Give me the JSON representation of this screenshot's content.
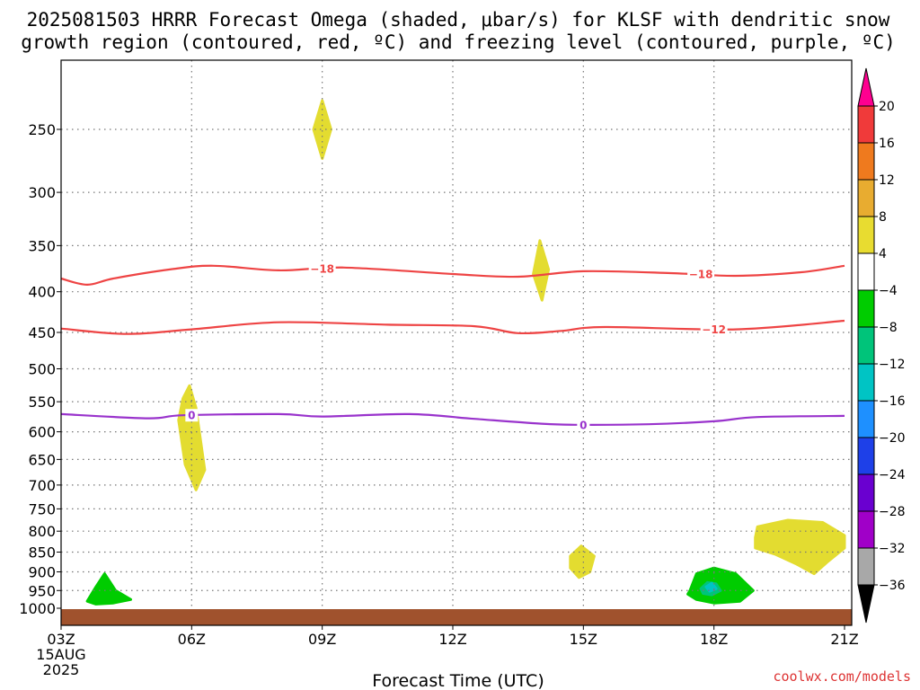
{
  "title": {
    "line1": "2025081503 HRRR Forecast Omega (shaded, μbar/s) for KLSF with dendritic snow",
    "line2": "growth region (contoured, red, ºC) and freezing level (contoured, purple, ºC)"
  },
  "credit": "coolwx.com/models",
  "chart_data": {
    "type": "heatmap",
    "xlabel": "Forecast Time (UTC)",
    "x_range": [
      0,
      18
    ],
    "x_ticks": [
      {
        "hour": 0,
        "label": "03Z",
        "sub1": "15AUG",
        "sub2": "2025"
      },
      {
        "hour": 3,
        "label": "06Z"
      },
      {
        "hour": 6,
        "label": "09Z"
      },
      {
        "hour": 9,
        "label": "12Z"
      },
      {
        "hour": 12,
        "label": "15Z"
      },
      {
        "hour": 15,
        "label": "18Z"
      },
      {
        "hour": 18,
        "label": "21Z"
      }
    ],
    "y_ticks": [
      250,
      300,
      350,
      400,
      450,
      500,
      550,
      600,
      650,
      700,
      750,
      800,
      850,
      900,
      950,
      1000
    ],
    "y_range": [
      1025,
      200
    ],
    "y_scale": "log",
    "grid": true,
    "ground_color": "#a0522d",
    "colorbar": {
      "labels": [
        "20",
        "16",
        "12",
        "8",
        "4",
        "−4",
        "−8",
        "−12",
        "−16",
        "−20",
        "−24",
        "−28",
        "−32",
        "−36"
      ],
      "colors": [
        "#ff0090",
        "#f03a3a",
        "#ef7a1e",
        "#e8ac30",
        "#e8dc30",
        "#ffffff",
        "#00cc00",
        "#00c47a",
        "#00c4c4",
        "#1e90ff",
        "#1e40e8",
        "#6a00d0",
        "#a000c8",
        "#a8a8a8",
        "#000000"
      ]
    },
    "omega_regions": [
      {
        "color": "#e3dc30",
        "points": [
          [
            6.0,
            230
          ],
          [
            6.2,
            250
          ],
          [
            6.0,
            272
          ],
          [
            5.8,
            250
          ]
        ]
      },
      {
        "color": "#e3dc30",
        "points": [
          [
            2.95,
            525
          ],
          [
            3.1,
            560
          ],
          [
            3.25,
            640
          ],
          [
            3.3,
            670
          ],
          [
            3.1,
            710
          ],
          [
            2.85,
            660
          ],
          [
            2.7,
            580
          ],
          [
            2.8,
            545
          ]
        ]
      },
      {
        "color": "#e3dc30",
        "points": [
          [
            11.0,
            345
          ],
          [
            11.2,
            375
          ],
          [
            11.05,
            410
          ],
          [
            10.85,
            380
          ]
        ]
      },
      {
        "color": "#e3dc30",
        "points": [
          [
            11.95,
            835
          ],
          [
            12.25,
            860
          ],
          [
            12.15,
            900
          ],
          [
            11.9,
            915
          ],
          [
            11.7,
            890
          ],
          [
            11.7,
            860
          ]
        ]
      },
      {
        "color": "#e3dc30",
        "points": [
          [
            16.0,
            790
          ],
          [
            16.7,
            775
          ],
          [
            17.5,
            780
          ],
          [
            18.0,
            810
          ],
          [
            18.0,
            840
          ],
          [
            17.6,
            875
          ],
          [
            17.3,
            905
          ],
          [
            16.9,
            880
          ],
          [
            16.4,
            855
          ],
          [
            15.95,
            840
          ],
          [
            15.95,
            815
          ]
        ]
      },
      {
        "color": "#00cc00",
        "points": [
          [
            0.6,
            980
          ],
          [
            0.8,
            940
          ],
          [
            1.0,
            905
          ],
          [
            1.25,
            950
          ],
          [
            1.6,
            975
          ],
          [
            1.2,
            985
          ],
          [
            0.8,
            988
          ]
        ]
      },
      {
        "color": "#00cc00",
        "points": [
          [
            14.45,
            950
          ],
          [
            14.6,
            905
          ],
          [
            15.0,
            890
          ],
          [
            15.5,
            905
          ],
          [
            15.9,
            950
          ],
          [
            15.6,
            980
          ],
          [
            15.0,
            985
          ],
          [
            14.6,
            975
          ],
          [
            14.4,
            960
          ]
        ]
      },
      {
        "color": "#00c47a",
        "points": [
          [
            14.7,
            945
          ],
          [
            14.85,
            928
          ],
          [
            15.05,
            932
          ],
          [
            15.15,
            950
          ],
          [
            14.95,
            962
          ],
          [
            14.75,
            958
          ]
        ]
      },
      {
        "color": "#00c4c4",
        "points": [
          [
            14.82,
            940
          ],
          [
            14.95,
            930
          ],
          [
            15.05,
            945
          ],
          [
            14.9,
            952
          ]
        ]
      }
    ],
    "contours": [
      {
        "label": "−18",
        "color": "#ee4444",
        "points": [
          [
            0,
            385
          ],
          [
            0.6,
            392
          ],
          [
            1.2,
            385
          ],
          [
            2.5,
            375
          ],
          [
            3.5,
            371
          ],
          [
            5,
            376
          ],
          [
            6.5,
            373
          ],
          [
            9,
            380
          ],
          [
            10.5,
            383
          ],
          [
            12,
            377
          ],
          [
            14,
            379
          ],
          [
            15.5,
            382
          ],
          [
            17,
            378
          ],
          [
            18,
            371
          ]
        ],
        "label_at": [
          [
            6.0,
            374
          ],
          [
            14.7,
            380
          ]
        ]
      },
      {
        "label": "−12",
        "color": "#ee4444",
        "points": [
          [
            0,
            445
          ],
          [
            1.5,
            452
          ],
          [
            3,
            446
          ],
          [
            5,
            437
          ],
          [
            7.5,
            440
          ],
          [
            9.5,
            442
          ],
          [
            10.5,
            451
          ],
          [
            11.5,
            448
          ],
          [
            12.5,
            443
          ],
          [
            15.5,
            446
          ],
          [
            18,
            435
          ]
        ],
        "label_at": [
          [
            15.0,
            446
          ]
        ]
      },
      {
        "label": "0",
        "color": "#9933cc",
        "points": [
          [
            0,
            570
          ],
          [
            2,
            577
          ],
          [
            2.8,
            572
          ],
          [
            5,
            570
          ],
          [
            6,
            574
          ],
          [
            8,
            570
          ],
          [
            9.5,
            578
          ],
          [
            11,
            586
          ],
          [
            11.8,
            588
          ],
          [
            13.5,
            587
          ],
          [
            15,
            582
          ],
          [
            16,
            575
          ],
          [
            18,
            573
          ]
        ],
        "label_at": [
          [
            3.0,
            572
          ],
          [
            12.0,
            588
          ]
        ]
      }
    ]
  }
}
